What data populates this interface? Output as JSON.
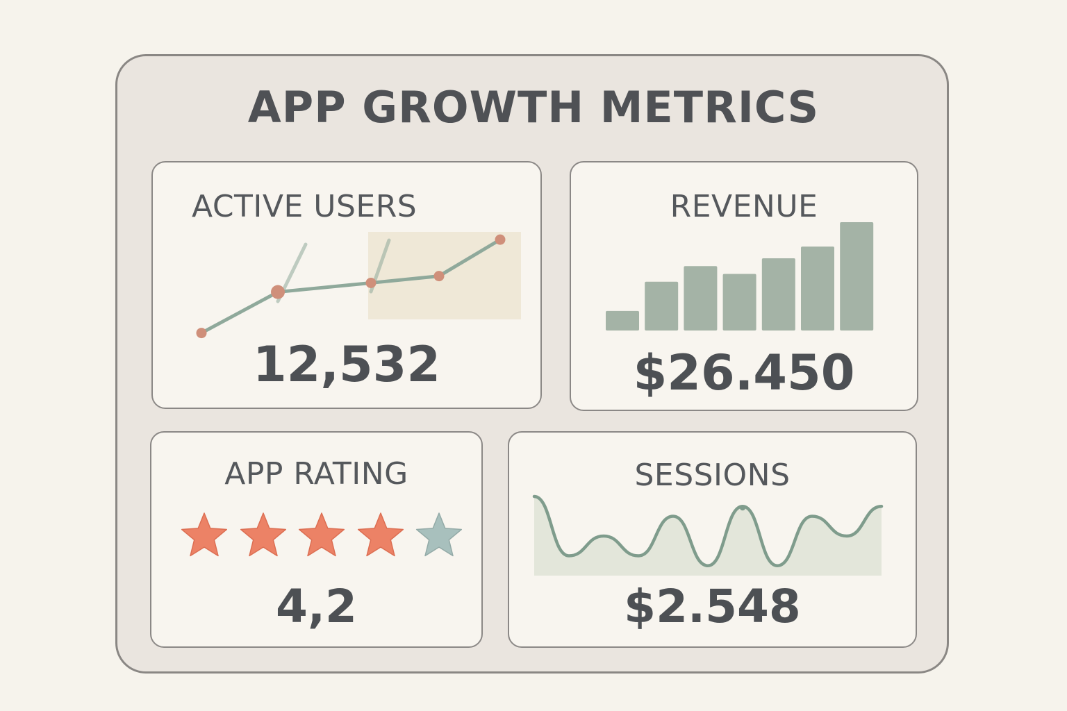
{
  "dashboard": {
    "title": "APP GROWTH METRICS",
    "cards": {
      "active_users": {
        "label": "ACTIVE USERS",
        "value": "12,532",
        "trend": [
          1,
          2.8,
          3.2,
          3.5,
          5.1
        ]
      },
      "revenue": {
        "label": "REVENUE",
        "value": "$26.450",
        "bars": [
          2,
          5,
          6.6,
          5.8,
          7.4,
          8.6,
          11.1
        ]
      },
      "app_rating": {
        "label": "APP RATING",
        "value": "4,2",
        "stars_filled": 4,
        "stars_total": 5
      },
      "sessions": {
        "label": "SESSIONS",
        "value": "$2.548",
        "wave": [
          8,
          2,
          4,
          2,
          6,
          1,
          7,
          1,
          6,
          4,
          7
        ]
      }
    },
    "colors": {
      "line": "#8fa99b",
      "point": "#cf8f7a",
      "bar": "#a4b3a6",
      "star_filled": "#ec8266",
      "star_empty": "#a8c0bd",
      "wave_line": "#7f9c8c",
      "wave_fill": "#dde2d4",
      "area_fill": "#ece3cf"
    }
  }
}
